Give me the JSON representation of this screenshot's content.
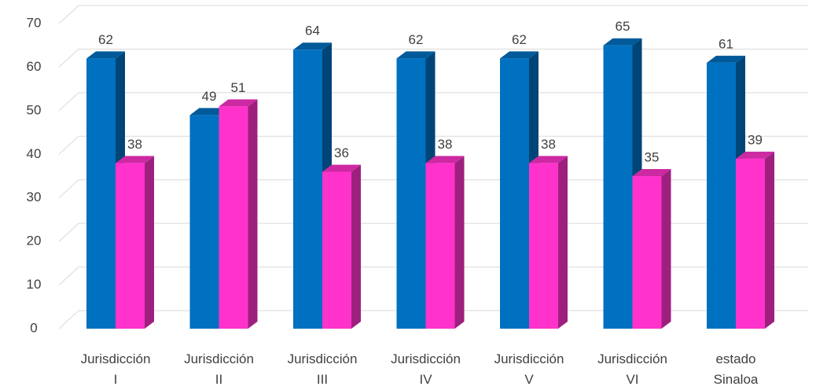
{
  "chart_data": {
    "type": "bar3d",
    "categories": [
      "Jurisdicción I",
      "Jurisdicción II",
      "Jurisdicción III",
      "Jurisdicción IV",
      "Jurisdicción V",
      "Jurisdicción VI",
      "estado Sinaloa"
    ],
    "series": [
      {
        "color": "#0070c0",
        "values": [
          62,
          49,
          64,
          62,
          62,
          65,
          61
        ]
      },
      {
        "color": "#ff33cc",
        "values": [
          38,
          51,
          36,
          38,
          38,
          35,
          39
        ]
      }
    ],
    "ylim": [
      0,
      70
    ],
    "yticks": [
      0,
      10,
      20,
      30,
      40,
      50,
      60,
      70
    ],
    "grid": true
  }
}
